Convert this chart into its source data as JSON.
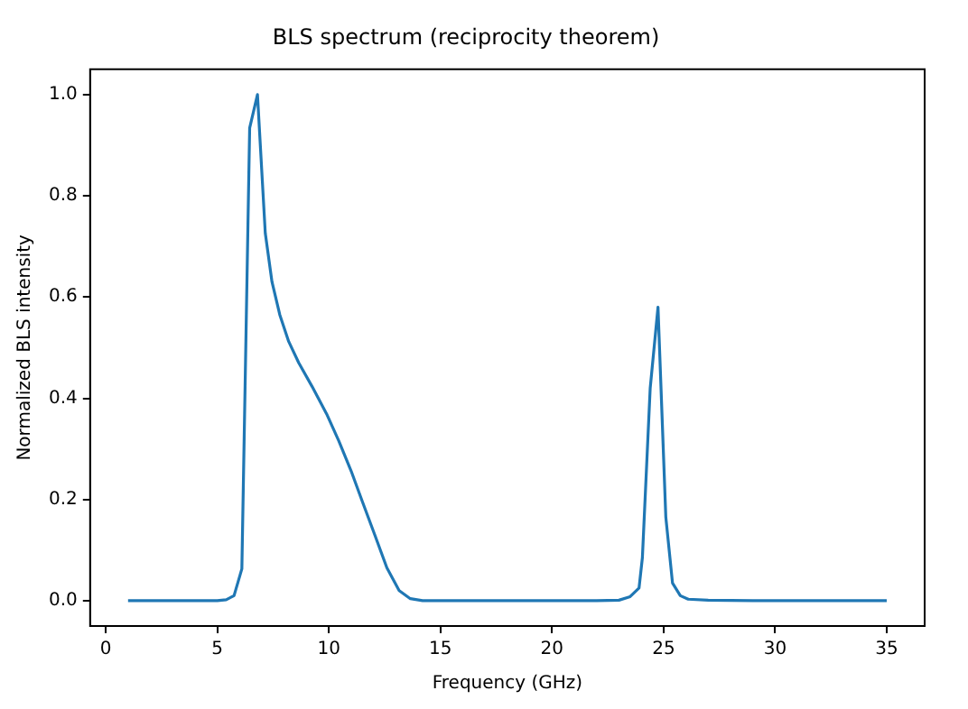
{
  "chart_data": {
    "type": "line",
    "title": "BLS spectrum (reciprocity theorem)",
    "xlabel": "Frequency (GHz)",
    "ylabel": "Normalized BLS intensity",
    "x": [
      1,
      2,
      3,
      4,
      5,
      5.4,
      5.75,
      6.1,
      6.45,
      6.8,
      7.15,
      7.45,
      7.8,
      8.2,
      8.65,
      9.25,
      9.9,
      10.45,
      11,
      11.5,
      12.05,
      12.6,
      13.15,
      13.65,
      14.2,
      16,
      18,
      20,
      22,
      23,
      23.5,
      23.9,
      24.05,
      24.4,
      24.75,
      25.1,
      25.4,
      25.75,
      26.1,
      27,
      29,
      31,
      33,
      35
    ],
    "series": [
      {
        "color": "#1f77b4",
        "values": [
          0,
          0,
          0,
          0,
          0,
          0.002,
          0.01,
          0.063,
          0.934,
          1.0,
          0.726,
          0.63,
          0.565,
          0.512,
          0.47,
          0.423,
          0.369,
          0.315,
          0.256,
          0.196,
          0.131,
          0.065,
          0.02,
          0.004,
          0,
          0,
          0,
          0,
          0,
          0.001,
          0.008,
          0.025,
          0.085,
          0.42,
          0.58,
          0.165,
          0.035,
          0.01,
          0.003,
          0.001,
          0,
          0,
          0,
          0
        ]
      }
    ],
    "xlim": [
      -0.7,
      36.7
    ],
    "xticks": [
      0,
      5,
      10,
      15,
      20,
      25,
      30,
      35
    ],
    "ylim": [
      -0.05,
      1.05
    ],
    "yticks": [
      {
        "value": 0,
        "label": "0.0"
      },
      {
        "value": 0.2,
        "label": "0.2"
      },
      {
        "value": 0.4,
        "label": "0.4"
      },
      {
        "value": 0.6,
        "label": "0.6"
      },
      {
        "value": 0.8,
        "label": "0.8"
      },
      {
        "value": 1,
        "label": "1.0"
      }
    ],
    "grid": false,
    "legend": false,
    "marker": "none",
    "line_style": "solid"
  }
}
